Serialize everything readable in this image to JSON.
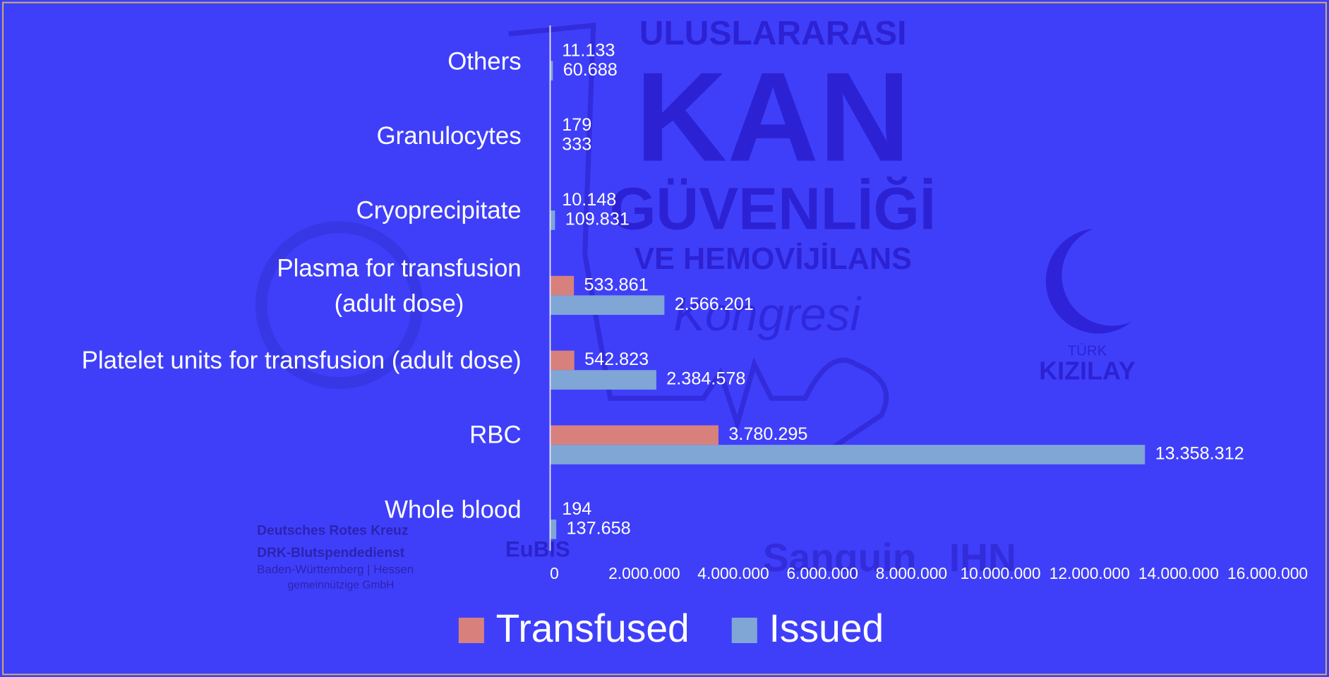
{
  "chart_data": {
    "type": "hbar",
    "categories": [
      "Others",
      "Granulocytes",
      "Cryoprecipitate",
      "Plasma for transfusion\n(adult dose)",
      "Platelet units for transfusion (adult dose)",
      "RBC",
      "Whole blood"
    ],
    "series": [
      {
        "name": "Transfused",
        "color": "#d8807c",
        "values": [
          11133,
          179,
          10148,
          533861,
          542823,
          3780295,
          194
        ],
        "value_labels": [
          "11.133",
          "179",
          "10.148",
          "533.861",
          "542.823",
          "3.780.295",
          "194"
        ]
      },
      {
        "name": "Issued",
        "color": "#80a6d6",
        "values": [
          60688,
          333,
          109831,
          2566201,
          2384578,
          13358312,
          137658
        ],
        "value_labels": [
          "60.688",
          "333",
          "109.831",
          "2.566.201",
          "2.384.578",
          "13.358.312",
          "137.658"
        ]
      }
    ],
    "xlim": [
      0,
      16000000
    ],
    "xticks": [
      0,
      {
        "value": 2000000,
        "label": "2.000.000"
      },
      {
        "value": 4000000,
        "label": "4.000.000"
      },
      {
        "value": 6000000,
        "label": "6.000.000"
      },
      {
        "value": 8000000,
        "label": "8.000.000"
      },
      {
        "value": 10000000,
        "label": "10.000.000"
      },
      {
        "value": 12000000,
        "label": "12.000.000"
      },
      {
        "value": 14000000,
        "label": "14.000.000"
      },
      {
        "value": 16000000,
        "label": "16.000.000"
      }
    ],
    "legend": "bottom"
  },
  "watermark": [
    "ULUSLARARASI",
    "KAN",
    "GÜVENLİĞİ",
    "VE HEMOVİJİLANS",
    "Kongresi",
    "TÜRK",
    "KIZILAY",
    "Deutsches Rotes Kreuz",
    "DRK-Blutspendedienst",
    "Baden-Württemberg | Hessen",
    "gemeinnützige GmbH",
    "EuBIS",
    "Sanquin",
    "IHN"
  ]
}
